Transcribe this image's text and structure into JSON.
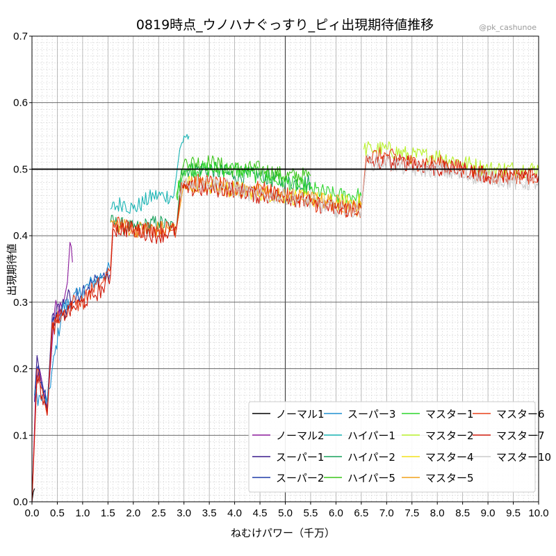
{
  "chart_data": {
    "type": "line",
    "title": "0819時点_ウノハナぐっすり_ピィ出現期待値推移",
    "credit": "@pk_cashunoe",
    "xlabel": "ねむけパワー（千万）",
    "ylabel": "出現期待値",
    "xlim": [
      0.0,
      10.0
    ],
    "ylim": [
      0.0,
      0.7
    ],
    "xticks": [
      "0.0",
      "0.5",
      "1.0",
      "1.5",
      "2.0",
      "2.5",
      "3.0",
      "3.5",
      "4.0",
      "4.5",
      "5.0",
      "5.5",
      "6.0",
      "6.5",
      "7.0",
      "7.5",
      "8.0",
      "8.5",
      "9.0",
      "9.5",
      "10.0"
    ],
    "yticks": [
      "0.0",
      "0.1",
      "0.2",
      "0.3",
      "0.4",
      "0.5",
      "0.6",
      "0.7"
    ],
    "reference_line": 0.5,
    "grid": true,
    "legend_position": "bottom-right",
    "series": [
      {
        "name": "ノーマル1",
        "color": "#000000",
        "x": [
          0.0,
          0.05
        ],
        "y": [
          0.0,
          0.02
        ]
      },
      {
        "name": "ノーマル2",
        "color": "#8b1a9c",
        "x": [
          0.0,
          0.08,
          0.15,
          0.3,
          0.45,
          0.6,
          0.7,
          0.75,
          0.8
        ],
        "y": [
          0.0,
          0.18,
          0.2,
          0.14,
          0.29,
          0.29,
          0.33,
          0.39,
          0.36
        ]
      },
      {
        "name": "スーパー1",
        "color": "#3a1a8c",
        "x": [
          0.05,
          0.1,
          0.2,
          0.3,
          0.4,
          0.55,
          0.7,
          0.8
        ],
        "y": [
          0.15,
          0.22,
          0.17,
          0.14,
          0.28,
          0.29,
          0.31,
          0.3
        ]
      },
      {
        "name": "スーパー2",
        "color": "#1f3ca8",
        "x": [
          0.05,
          0.1,
          0.2,
          0.3,
          0.4,
          0.6,
          0.8,
          1.0,
          1.2,
          1.4,
          1.55
        ],
        "y": [
          0.16,
          0.2,
          0.18,
          0.14,
          0.27,
          0.28,
          0.3,
          0.32,
          0.33,
          0.34,
          0.34
        ]
      },
      {
        "name": "スーパー3",
        "color": "#1f8fd0",
        "x": [
          0.05,
          0.3,
          0.6,
          0.9,
          1.2,
          1.55
        ],
        "y": [
          0.16,
          0.15,
          0.29,
          0.31,
          0.33,
          0.35
        ]
      },
      {
        "name": "ハイパー1",
        "color": "#17b3b3",
        "x": [
          1.55,
          1.8,
          2.0,
          2.2,
          2.4,
          2.6,
          2.8,
          2.9,
          3.0,
          3.1
        ],
        "y": [
          0.44,
          0.45,
          0.44,
          0.45,
          0.46,
          0.46,
          0.46,
          0.52,
          0.55,
          0.55
        ]
      },
      {
        "name": "ハイパー2",
        "color": "#17a05a",
        "x": [
          1.55,
          2.0,
          2.5,
          2.85,
          2.95,
          3.5,
          4.0,
          4.5,
          5.0,
          5.5
        ],
        "y": [
          0.42,
          0.41,
          0.42,
          0.41,
          0.5,
          0.5,
          0.49,
          0.49,
          0.48,
          0.48
        ]
      },
      {
        "name": "ハイパー5",
        "color": "#3ac61a",
        "x": [
          2.85,
          3.0,
          3.5,
          4.0,
          4.5,
          5.0,
          5.5
        ],
        "y": [
          0.46,
          0.51,
          0.51,
          0.5,
          0.5,
          0.49,
          0.49
        ]
      },
      {
        "name": "マスター1",
        "color": "#2bd62b",
        "x": [
          2.85,
          3.0,
          3.5,
          4.0,
          4.5,
          5.0,
          5.5,
          6.0,
          6.5
        ],
        "y": [
          0.46,
          0.5,
          0.5,
          0.5,
          0.49,
          0.48,
          0.47,
          0.46,
          0.46
        ]
      },
      {
        "name": "マスター2",
        "color": "#b8f22a",
        "x": [
          6.55,
          6.7,
          7.0,
          7.5,
          8.0,
          8.5,
          9.0,
          9.5,
          10.0
        ],
        "y": [
          0.53,
          0.53,
          0.53,
          0.52,
          0.52,
          0.51,
          0.5,
          0.5,
          0.5
        ]
      },
      {
        "name": "マスター4",
        "color": "#f2e21a",
        "x": [
          3.0,
          4.0,
          5.0,
          6.0,
          6.5
        ],
        "y": [
          0.48,
          0.47,
          0.46,
          0.45,
          0.45
        ]
      },
      {
        "name": "マスター5",
        "color": "#f2a01a",
        "x": [
          1.55,
          2.0,
          2.5,
          2.85,
          3.0,
          4.0,
          5.0,
          6.0,
          6.5
        ],
        "y": [
          0.42,
          0.41,
          0.41,
          0.41,
          0.48,
          0.47,
          0.46,
          0.45,
          0.44
        ]
      },
      {
        "name": "マスター6",
        "color": "#e8401a",
        "x": [
          0.0,
          0.1,
          0.2,
          0.3,
          0.4,
          0.6,
          0.8,
          1.0,
          1.2,
          1.4,
          1.55,
          1.6,
          2.0,
          2.5,
          2.85,
          2.95,
          3.5,
          4.0,
          4.5,
          5.0,
          5.5,
          6.0,
          6.5,
          6.6,
          7.0,
          7.5,
          8.0,
          8.5,
          9.0,
          9.5,
          10.0
        ],
        "y": [
          0.0,
          0.2,
          0.17,
          0.13,
          0.27,
          0.28,
          0.3,
          0.3,
          0.32,
          0.33,
          0.35,
          0.42,
          0.41,
          0.41,
          0.41,
          0.48,
          0.48,
          0.47,
          0.47,
          0.46,
          0.45,
          0.44,
          0.44,
          0.52,
          0.52,
          0.51,
          0.51,
          0.5,
          0.49,
          0.49,
          0.49
        ]
      },
      {
        "name": "マスター7",
        "color": "#d01a0a",
        "x": [
          0.0,
          0.1,
          0.2,
          0.3,
          0.4,
          0.6,
          0.8,
          1.0,
          1.2,
          1.4,
          1.55,
          1.6,
          2.0,
          2.5,
          2.85,
          2.95,
          3.5,
          4.0,
          4.5,
          5.0,
          5.5,
          6.0,
          6.5,
          6.6,
          7.0,
          7.5,
          8.0,
          8.5,
          9.0,
          9.5,
          10.0
        ],
        "y": [
          0.0,
          0.19,
          0.16,
          0.13,
          0.26,
          0.28,
          0.29,
          0.3,
          0.31,
          0.32,
          0.34,
          0.41,
          0.41,
          0.4,
          0.41,
          0.47,
          0.47,
          0.47,
          0.46,
          0.46,
          0.45,
          0.44,
          0.44,
          0.51,
          0.51,
          0.51,
          0.5,
          0.5,
          0.49,
          0.49,
          0.49
        ]
      },
      {
        "name": "マスター10",
        "color": "#cccccc",
        "x": [
          2.9,
          3.0,
          3.5,
          4.0,
          4.5,
          5.0,
          5.5,
          6.0,
          6.5,
          6.6,
          7.0,
          7.5,
          8.0,
          8.5,
          9.0,
          9.5,
          10.0
        ],
        "y": [
          0.46,
          0.48,
          0.48,
          0.47,
          0.46,
          0.46,
          0.45,
          0.44,
          0.44,
          0.51,
          0.51,
          0.5,
          0.5,
          0.49,
          0.49,
          0.48,
          0.48
        ]
      }
    ],
    "legend_columns": [
      [
        "ノーマル1",
        "ノーマル2",
        "スーパー1",
        "スーパー2"
      ],
      [
        "スーパー3",
        "ハイパー1",
        "ハイパー2",
        "ハイパー5"
      ],
      [
        "マスター1",
        "マスター2",
        "マスター4",
        "マスター5"
      ],
      [
        "マスター6",
        "マスター7",
        "マスター10"
      ]
    ]
  }
}
